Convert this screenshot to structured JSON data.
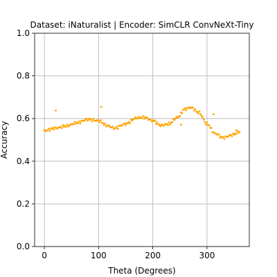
{
  "chart_data": {
    "type": "scatter",
    "title": "Dataset: iNaturalist | Encoder: SimCLR ConvNeXt-Tiny",
    "xlabel": "Theta (Degrees)",
    "ylabel": "Accuracy",
    "xlim": [
      -18,
      378
    ],
    "ylim": [
      0,
      1
    ],
    "xticks": [
      0,
      100,
      200,
      300
    ],
    "yticks": [
      0.0,
      0.2,
      0.4,
      0.6,
      0.8,
      1.0
    ],
    "xtick_labels": [
      "0",
      "100",
      "200",
      "300"
    ],
    "ytick_labels": [
      "0.0",
      "0.2",
      "0.4",
      "0.6",
      "0.8",
      "1.0"
    ],
    "grid": true,
    "marker_color": "#ffa500",
    "curve_anchors": {
      "x": [
        0,
        20,
        40,
        60,
        80,
        100,
        115,
        130,
        150,
        170,
        185,
        200,
        215,
        230,
        245,
        260,
        270,
        285,
        300,
        315,
        330,
        345,
        360
      ],
      "y": [
        0.543,
        0.555,
        0.565,
        0.58,
        0.596,
        0.59,
        0.568,
        0.555,
        0.575,
        0.603,
        0.605,
        0.59,
        0.568,
        0.575,
        0.605,
        0.645,
        0.652,
        0.628,
        0.575,
        0.53,
        0.51,
        0.522,
        0.538
      ]
    },
    "x_step": 2,
    "outliers": [
      {
        "x": 21,
        "y": 0.638
      },
      {
        "x": 105,
        "y": 0.655
      },
      {
        "x": 252,
        "y": 0.572
      },
      {
        "x": 312,
        "y": 0.62
      },
      {
        "x": 354,
        "y": 0.545
      }
    ]
  }
}
